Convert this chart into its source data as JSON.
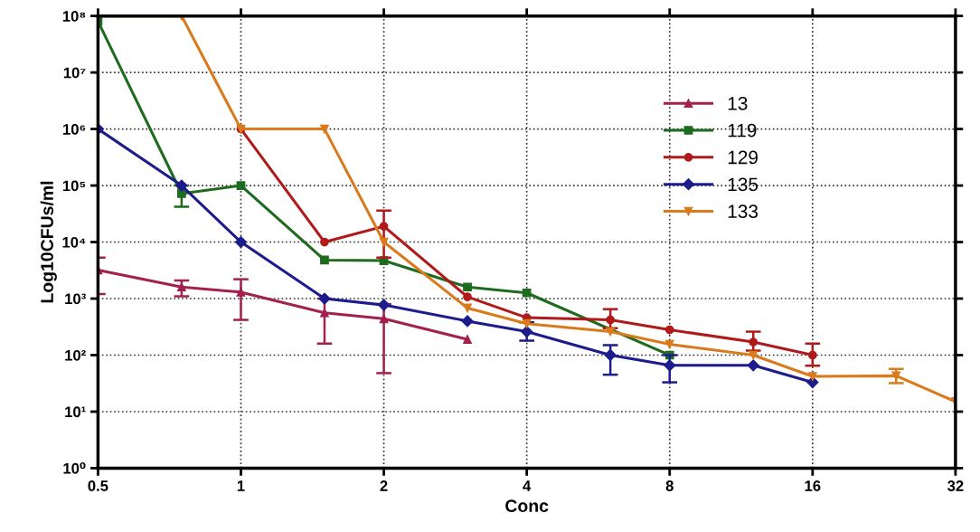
{
  "chart_data": {
    "type": "line",
    "xlabel": "Conc",
    "ylabel": "Log10CFUs/ml",
    "log": "xy",
    "grid": true,
    "legend": "top right",
    "line_style": "solid",
    "xlim": [
      0.5,
      32
    ],
    "xticks": [
      0.5,
      1,
      2,
      4,
      8,
      16,
      32
    ],
    "ylim": [
      1,
      100000000
    ],
    "yticks": [
      {
        "value": 1,
        "label": "10⁰"
      },
      {
        "value": 10,
        "label": "10¹"
      },
      {
        "value": 100,
        "label": "10²"
      },
      {
        "value": 1000,
        "label": "10³"
      },
      {
        "value": 10000,
        "label": "10⁴"
      },
      {
        "value": 100000,
        "label": "10⁵"
      },
      {
        "value": 1000000,
        "label": "10⁶"
      },
      {
        "value": 10000000,
        "label": "10⁷"
      },
      {
        "value": 100000000,
        "label": "10⁸"
      }
    ],
    "series": [
      {
        "name": "13",
        "color": "#a3214f",
        "marker": "triangle",
        "x": [
          0.5,
          0.75,
          1,
          1.5,
          2,
          3
        ],
        "values": [
          3200,
          1600,
          1300,
          560,
          440,
          190
        ],
        "errors": [
          [
            1200,
            5300
          ],
          [
            1100,
            2100
          ],
          [
            420,
            2200
          ],
          [
            160,
            1000
          ],
          [
            48,
            800
          ],
          null
        ]
      },
      {
        "name": "119",
        "color": "#1e6b1e",
        "marker": "square",
        "x": [
          0.5,
          0.75,
          1,
          1.5,
          2,
          3,
          4,
          8
        ],
        "values": [
          80000000,
          72000,
          100000,
          4800,
          4700,
          1600,
          1260,
          100
        ],
        "errors": [
          null,
          [
            42000,
            100000
          ],
          null,
          null,
          null,
          null,
          null,
          null
        ]
      },
      {
        "name": "129",
        "color": "#b01a1a",
        "marker": "circle",
        "x": [
          1,
          1.5,
          2,
          3,
          4,
          6,
          8,
          12,
          16
        ],
        "values": [
          1000000,
          10000,
          19000,
          1070,
          460,
          420,
          280,
          170,
          100
        ],
        "errors": [
          null,
          null,
          [
            5300,
            36000
          ],
          null,
          null,
          [
            300,
            650
          ],
          null,
          [
            120,
            260
          ],
          [
            65,
            160
          ]
        ]
      },
      {
        "name": "135",
        "color": "#1c1c8c",
        "marker": "diamond",
        "x": [
          0.5,
          0.75,
          1,
          1.5,
          2,
          3,
          4,
          6,
          8,
          12,
          16
        ],
        "values": [
          1000000,
          100000,
          10000,
          1000,
          770,
          400,
          260,
          100,
          66,
          66,
          33
        ],
        "errors": [
          null,
          null,
          null,
          null,
          null,
          null,
          [
            180,
            380
          ],
          [
            45,
            150
          ],
          [
            33,
            100
          ],
          null,
          null
        ]
      },
      {
        "name": "133",
        "color": "#d97b1c",
        "marker": "triangle_down",
        "x": [
          0.5,
          0.75,
          1,
          1.5,
          2,
          3,
          4,
          6,
          8,
          12,
          16,
          24,
          32
        ],
        "values": [
          100000000,
          100000000,
          1000000,
          1000000,
          10000,
          680,
          360,
          260,
          155,
          100,
          42,
          43,
          15
        ],
        "errors": [
          null,
          null,
          null,
          null,
          null,
          null,
          null,
          null,
          null,
          null,
          null,
          [
            32,
            57
          ],
          null
        ]
      }
    ]
  }
}
